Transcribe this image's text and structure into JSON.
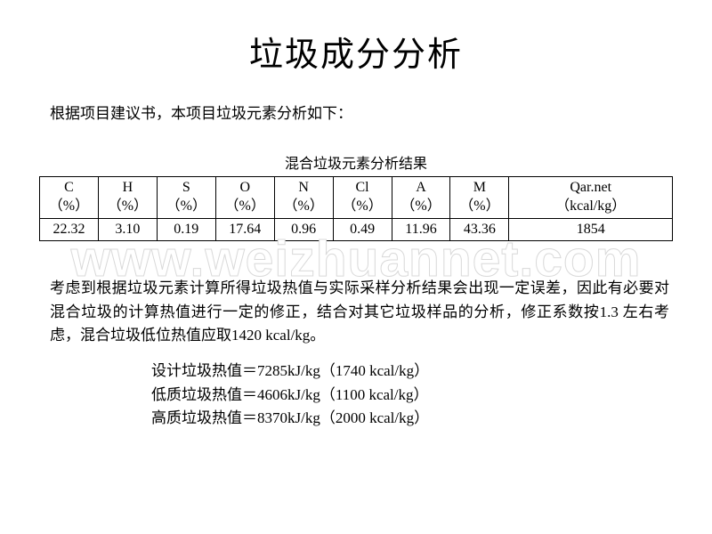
{
  "title": "垃圾成分分析",
  "intro": "根据项目建议书，本项目垃圾元素分析如下：",
  "table": {
    "caption": "混合垃圾元素分析结果",
    "headers": [
      {
        "top": "C",
        "bot": "（%）"
      },
      {
        "top": "H",
        "bot": "（%）"
      },
      {
        "top": "S",
        "bot": "（%）"
      },
      {
        "top": "O",
        "bot": "（%）"
      },
      {
        "top": "N",
        "bot": "（%）"
      },
      {
        "top": "Cl",
        "bot": "（%）"
      },
      {
        "top": "A",
        "bot": "（%）"
      },
      {
        "top": "M",
        "bot": "（%）"
      },
      {
        "top": "Qar.net",
        "bot": "（kcal/kg）"
      }
    ],
    "row": [
      "22.32",
      "3.10",
      "0.19",
      "17.64",
      "0.96",
      "0.49",
      "11.96",
      "43.36",
      "1854"
    ]
  },
  "body": "考虑到根据垃圾元素计算所得垃圾热值与实际采样分析结果会出现一定误差，因此有必要对混合垃圾的计算热值进行一定的修正，结合对其它垃圾样品的分析，修正系数按1.3 左右考虑，混合垃圾低位热值应取1420 kcal/kg。",
  "values": {
    "l1": "设计垃圾热值＝7285kJ/kg（1740 kcal/kg）",
    "l2": "低质垃圾热值＝4606kJ/kg（1100 kcal/kg）",
    "l3": "高质垃圾热值＝8370kJ/kg（2000 kcal/kg）"
  },
  "watermark": "www.weizhuannet.com"
}
